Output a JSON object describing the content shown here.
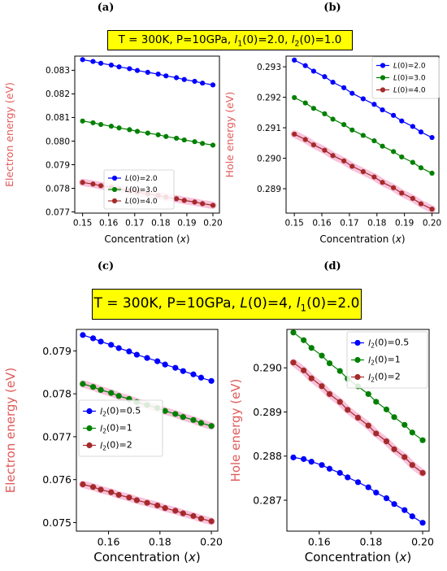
{
  "panels": {
    "a": "(a)",
    "b": "(b)",
    "c": "(c)",
    "d": "(d)"
  },
  "banners": [
    {
      "parts": [
        {
          "t": "T = 300K, P=10GPa, "
        },
        {
          "t": "l",
          "i": true
        },
        {
          "t": "1",
          "sub": true
        },
        {
          "t": "(0)=2.0, "
        },
        {
          "t": "l",
          "i": true
        },
        {
          "t": "2",
          "sub": true
        },
        {
          "t": "(0)=1.0"
        }
      ]
    },
    {
      "parts": [
        {
          "t": "T = 300K, P=10GPa, "
        },
        {
          "t": "L",
          "i": true
        },
        {
          "t": "(0)=4, "
        },
        {
          "t": "l",
          "i": true
        },
        {
          "t": "1",
          "sub": true
        },
        {
          "t": "(0)=2.0"
        }
      ]
    }
  ],
  "colors": {
    "blue": "#0000ff",
    "green": "#008000",
    "brown": "#a52a2a",
    "ylabel": "#e05a5a",
    "glow": "#f7b7d6",
    "banner_bg": "#ffff00"
  },
  "chart_data": [
    {
      "type": "line",
      "xlabel": {
        "parts": [
          {
            "t": "Concentration ("
          },
          {
            "t": "x",
            "i": true
          },
          {
            "t": ")"
          }
        ]
      },
      "ylabel": "Electron energy (eV)",
      "xlim": [
        0.147,
        0.2025
      ],
      "ylim": [
        0.07695,
        0.0836
      ],
      "xticks": [
        0.15,
        0.16,
        0.17,
        0.18,
        0.19,
        0.2
      ],
      "xtick_labels": [
        "0.15",
        "0.16",
        "0.17",
        "0.18",
        "0.19",
        "0.20"
      ],
      "yticks": [
        0.077,
        0.078,
        0.079,
        0.08,
        0.081,
        0.082,
        0.083
      ],
      "ytick_labels": [
        "0.077",
        "0.078",
        "0.079",
        "0.080",
        "0.081",
        "0.082",
        "0.083"
      ],
      "legend": "lower-center",
      "x": [
        0.15,
        0.154,
        0.157,
        0.161,
        0.164,
        0.168,
        0.171,
        0.175,
        0.179,
        0.182,
        0.186,
        0.189,
        0.193,
        0.196,
        0.2
      ],
      "series": [
        {
          "name": [
            {
              "t": "L",
              "i": true
            },
            {
              "t": "(0)=2.0"
            }
          ],
          "color": "blue",
          "start": 0.08345,
          "end": 0.08238
        },
        {
          "name": [
            {
              "t": "L",
              "i": true
            },
            {
              "t": "(0)=3.0"
            }
          ],
          "color": "green",
          "start": 0.08085,
          "end": 0.07983
        },
        {
          "name": [
            {
              "t": "L",
              "i": true
            },
            {
              "t": "(0)=4.0"
            }
          ],
          "color": "brown",
          "start": 0.07825,
          "end": 0.07728,
          "glow": true
        }
      ]
    },
    {
      "type": "line",
      "xlabel": {
        "parts": [
          {
            "t": "Concentration ("
          },
          {
            "t": "x",
            "i": true
          },
          {
            "t": ")"
          }
        ]
      },
      "ylabel": "Hole energy (eV)",
      "xlim": [
        0.147,
        0.2025
      ],
      "ylim": [
        0.2882,
        0.29335
      ],
      "xticks": [
        0.15,
        0.16,
        0.17,
        0.18,
        0.19,
        0.2
      ],
      "xtick_labels": [
        "0.15",
        "0.16",
        "0.17",
        "0.18",
        "0.19",
        "0.20"
      ],
      "yticks": [
        0.289,
        0.29,
        0.291,
        0.292,
        0.293
      ],
      "ytick_labels": [
        "0.289",
        "0.290",
        "0.291",
        "0.292",
        "0.293"
      ],
      "legend": "top-right",
      "x": [
        0.15,
        0.154,
        0.157,
        0.161,
        0.164,
        0.168,
        0.171,
        0.175,
        0.179,
        0.182,
        0.186,
        0.189,
        0.193,
        0.196,
        0.2
      ],
      "series": [
        {
          "name": [
            {
              "t": "L",
              "i": true
            },
            {
              "t": "(0)=2.0"
            }
          ],
          "color": "blue",
          "start": 0.29322,
          "end": 0.29068
        },
        {
          "name": [
            {
              "t": "L",
              "i": true
            },
            {
              "t": "(0)=3.0"
            }
          ],
          "color": "green",
          "start": 0.29199,
          "end": 0.28951
        },
        {
          "name": [
            {
              "t": "L",
              "i": true
            },
            {
              "t": "(0)=4.0"
            }
          ],
          "color": "brown",
          "start": 0.29079,
          "end": 0.28833,
          "glow": true
        }
      ]
    },
    {
      "type": "line",
      "xlabel": {
        "parts": [
          {
            "t": "Concentration ("
          },
          {
            "t": "x",
            "i": true
          },
          {
            "t": ")"
          }
        ]
      },
      "ylabel": "Electron energy (eV)",
      "xlim": [
        0.1475,
        0.2025
      ],
      "ylim": [
        0.0748,
        0.0795
      ],
      "xticks": [
        0.16,
        0.18,
        0.2
      ],
      "xtick_labels": [
        "0.16",
        "0.18",
        "0.20"
      ],
      "yticks": [
        0.075,
        0.076,
        0.077,
        0.078,
        0.079
      ],
      "ytick_labels": [
        "0.075",
        "0.076",
        "0.077",
        "0.078",
        "0.079"
      ],
      "legend": "center-left",
      "x": [
        0.15,
        0.154,
        0.157,
        0.161,
        0.164,
        0.168,
        0.171,
        0.175,
        0.179,
        0.182,
        0.186,
        0.189,
        0.193,
        0.196,
        0.2
      ],
      "series": [
        {
          "name": [
            {
              "t": "l",
              "i": true
            },
            {
              "t": "2",
              "sub": true
            },
            {
              "t": "(0)=0.5"
            }
          ],
          "color": "blue",
          "start": 0.07937,
          "end": 0.0783
        },
        {
          "name": [
            {
              "t": "l",
              "i": true
            },
            {
              "t": "2",
              "sub": true
            },
            {
              "t": "(0)=1"
            }
          ],
          "color": "green",
          "start": 0.07823,
          "end": 0.07725,
          "glow": true
        },
        {
          "name": [
            {
              "t": "l",
              "i": true
            },
            {
              "t": "2",
              "sub": true
            },
            {
              "t": "(0)=2"
            }
          ],
          "color": "brown",
          "start": 0.07589,
          "end": 0.07503,
          "glow": true
        }
      ]
    },
    {
      "type": "line",
      "xlabel": {
        "parts": [
          {
            "t": "Concentration ("
          },
          {
            "t": "x",
            "i": true
          },
          {
            "t": ")"
          }
        ]
      },
      "ylabel": "Hole energy (eV)",
      "xlim": [
        0.1475,
        0.2025
      ],
      "ylim": [
        0.2863,
        0.29087
      ],
      "xticks": [
        0.16,
        0.18,
        0.2
      ],
      "xtick_labels": [
        "0.16",
        "0.18",
        "0.20"
      ],
      "yticks": [
        0.287,
        0.288,
        0.289,
        0.29
      ],
      "ytick_labels": [
        "0.287",
        "0.288",
        "0.289",
        "0.290"
      ],
      "legend": "top-right",
      "x": [
        0.15,
        0.154,
        0.157,
        0.161,
        0.164,
        0.168,
        0.171,
        0.175,
        0.179,
        0.182,
        0.186,
        0.189,
        0.193,
        0.196,
        0.2
      ],
      "series": [
        {
          "name": [
            {
              "t": "l",
              "i": true
            },
            {
              "t": "2",
              "sub": true
            },
            {
              "t": "(0)=0.5"
            }
          ],
          "color": "blue",
          "start": 0.28797,
          "end": 0.28649,
          "curve": 1.4
        },
        {
          "name": [
            {
              "t": "l",
              "i": true
            },
            {
              "t": "2",
              "sub": true
            },
            {
              "t": "(0)=1"
            }
          ],
          "color": "green",
          "start": 0.2908,
          "end": 0.28836
        },
        {
          "name": [
            {
              "t": "l",
              "i": true
            },
            {
              "t": "2",
              "sub": true
            },
            {
              "t": "(0)=2"
            }
          ],
          "color": "brown",
          "start": 0.29012,
          "end": 0.28762,
          "glow": true
        }
      ]
    }
  ]
}
